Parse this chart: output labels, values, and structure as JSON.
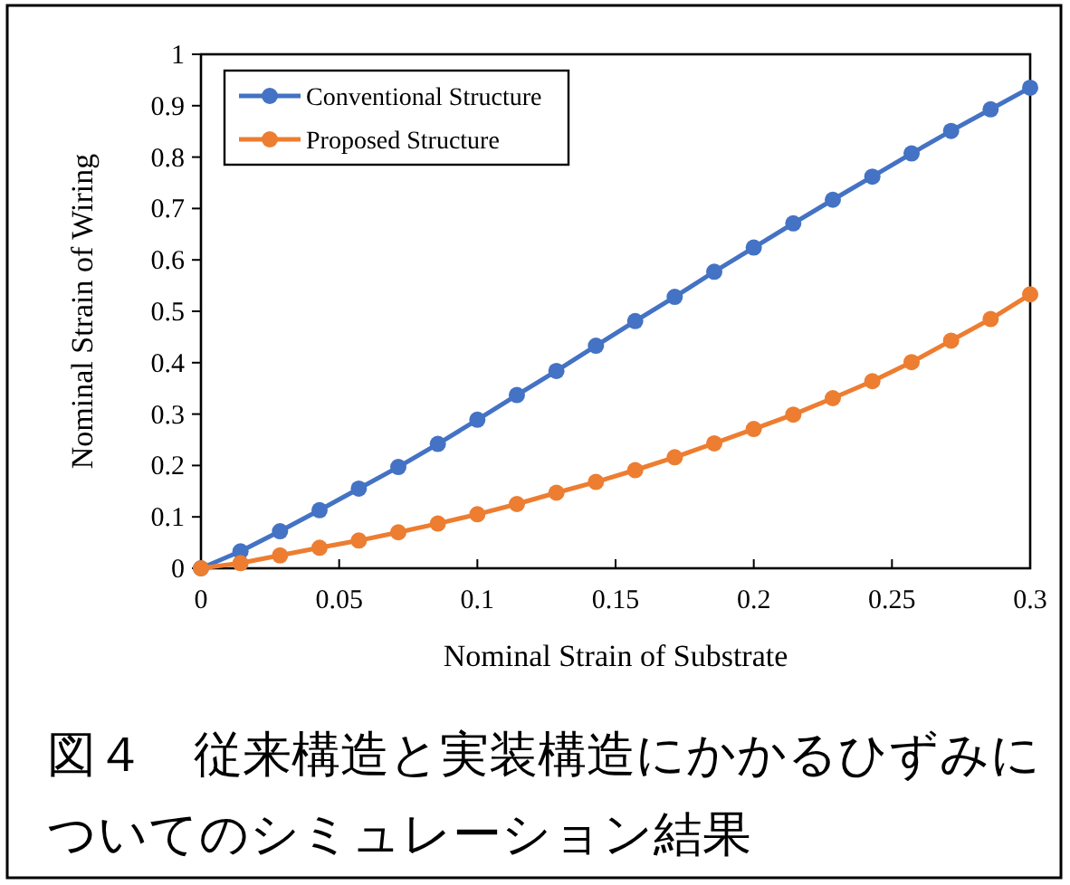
{
  "chart_data": {
    "type": "line",
    "xlabel": "Nominal Strain of Substrate",
    "ylabel": "Nominal Strain of Wiring",
    "annotations": [
      "図４　従来構造と実装構造にかかるひずみについてのシミュレーション結果"
    ],
    "x": [
      0,
      0.0143,
      0.0286,
      0.0429,
      0.0571,
      0.0714,
      0.0857,
      0.1,
      0.1143,
      0.1286,
      0.1429,
      0.1571,
      0.1714,
      0.1857,
      0.2,
      0.2143,
      0.2286,
      0.2429,
      0.2571,
      0.2714,
      0.2857,
      0.3
    ],
    "series": [
      {
        "name": "Conventional Structure",
        "color": "#4472c4",
        "values": [
          0,
          0.033,
          0.072,
          0.113,
          0.155,
          0.197,
          0.242,
          0.289,
          0.337,
          0.384,
          0.433,
          0.481,
          0.528,
          0.577,
          0.624,
          0.671,
          0.717,
          0.762,
          0.807,
          0.851,
          0.893,
          0.935
        ]
      },
      {
        "name": "Proposed Structure",
        "color": "#ed7d31",
        "values": [
          0,
          0.01,
          0.025,
          0.04,
          0.054,
          0.07,
          0.087,
          0.105,
          0.125,
          0.147,
          0.168,
          0.191,
          0.216,
          0.243,
          0.271,
          0.299,
          0.331,
          0.364,
          0.401,
          0.443,
          0.485,
          0.533
        ]
      }
    ],
    "xlim": [
      0,
      0.3
    ],
    "xticks": [
      0,
      0.05,
      0.1,
      0.15,
      0.2,
      0.25,
      0.3
    ],
    "ylim": [
      0,
      1
    ],
    "yticks": [
      0,
      0.1,
      0.2,
      0.3,
      0.4,
      0.5,
      0.6,
      0.7,
      0.8,
      0.9,
      1
    ],
    "legend": "top left",
    "marker": "circle",
    "line_style": "solid"
  }
}
